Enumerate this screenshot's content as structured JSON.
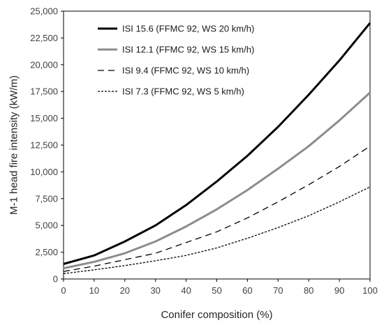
{
  "chart_data": {
    "type": "line",
    "title": "",
    "xlabel": "Conifer composition (%)",
    "ylabel": "M-1 head fire intensity (kW/m)",
    "xlim": [
      0,
      100
    ],
    "ylim": [
      0,
      25000
    ],
    "x_ticks": [
      0,
      10,
      20,
      30,
      40,
      50,
      60,
      70,
      80,
      90,
      100
    ],
    "y_ticks": [
      0,
      2500,
      5000,
      7500,
      10000,
      12500,
      15000,
      17500,
      20000,
      22500,
      25000
    ],
    "y_tick_labels": [
      "0",
      "2,500",
      "5,000",
      "7,500",
      "10,000",
      "12,500",
      "15,000",
      "17,500",
      "20,000",
      "22,500",
      "25,000"
    ],
    "grid": false,
    "legend_position": "top-left",
    "x": [
      0,
      10,
      20,
      30,
      40,
      50,
      60,
      70,
      80,
      90,
      100
    ],
    "series": [
      {
        "name": "ISI 15.6  (FFMC 92, WS 20 km/h)",
        "values": [
          1400,
          2200,
          3500,
          5000,
          6900,
          9100,
          11500,
          14200,
          17200,
          20400,
          23900
        ],
        "color": "#000000",
        "style": "solid-thick"
      },
      {
        "name": "ISI 12.1  (FFMC 92, WS 15 km/h)",
        "values": [
          1000,
          1600,
          2400,
          3500,
          4900,
          6500,
          8300,
          10300,
          12400,
          14800,
          17400
        ],
        "color": "#8c8c8c",
        "style": "solid-thick"
      },
      {
        "name": "ISI 9.4  (FFMC 92, WS 10 km/h)",
        "values": [
          700,
          1200,
          1800,
          2400,
          3400,
          4400,
          5700,
          7200,
          8800,
          10500,
          12400
        ],
        "color": "#000000",
        "style": "dashed"
      },
      {
        "name": "ISI 7.3  (FFMC 92, WS 5 km/h)",
        "values": [
          500,
          850,
          1250,
          1700,
          2200,
          2900,
          3800,
          4800,
          5900,
          7200,
          8600
        ],
        "color": "#000000",
        "style": "dotted"
      }
    ]
  }
}
